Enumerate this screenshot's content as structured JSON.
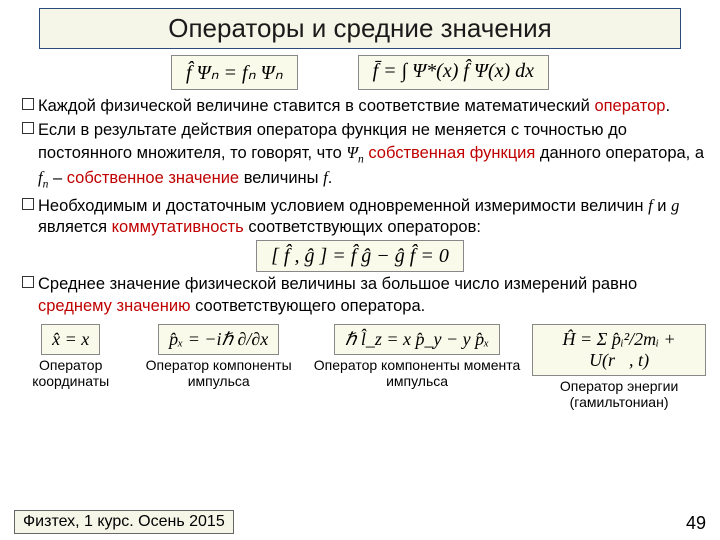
{
  "title": "Операторы и средние значения",
  "eq1": "f̂ Ψₙ = fₙ Ψₙ",
  "eq2": "f̄ = ∫ Ψ*(x) f̂ Ψ(x) dx",
  "bullet1a": "Каждой физической величине ставится в соответствие математический ",
  "bullet1b": "оператор",
  "bullet1c": ".",
  "bullet2a": "Если в результате действия оператора функция не меняется с точностью до постоянного множителя, то говорят, что ",
  "bullet2b": "Ψ",
  "bullet2n": "n",
  "bullet2c": " ",
  "bullet2d": "собственная функция",
  "bullet2e": " данного оператора, а ",
  "bullet2f": "f",
  "bullet2g": " – ",
  "bullet2h": "собственное значение",
  "bullet2i": " величины ",
  "bullet2j": "f",
  "bullet2k": ".",
  "bullet3a": "Необходимым и достаточным условием одновременной измеримости величин ",
  "bullet3b": "f",
  "bullet3c": " и ",
  "bullet3d": "g",
  "bullet3e": " является ",
  "bullet3f": "коммутативность",
  "bullet3g": " соответствующих операторов:",
  "eq3": "[ f̂ , ĝ ] = f̂ ĝ − ĝ f̂ = 0",
  "bullet4a": "Среднее значение физической величины за большое число измерений равно ",
  "bullet4b": "среднему значению",
  "bullet4c": " соответствующего оператора.",
  "op1eq": "x̂ = x",
  "op1lbl": "Оператор координаты",
  "op2eq": "p̂ₓ = −iℏ ∂/∂x",
  "op2lbl": "Оператор компоненты импульса",
  "op3eq": "ℏ l̂_z = x p̂_y − y p̂ₓ",
  "op3lbl": "Оператор компоненты момента импульса",
  "op4eq": "Ĥ = Σ p̂ᵢ²/2mᵢ + U(r⃗, t)",
  "op4lbl": "Оператор энергии (гамильтониан)",
  "footer": "Физтех, 1 курс. Осень 2015",
  "page": "49"
}
